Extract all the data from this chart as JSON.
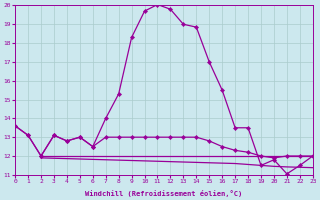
{
  "xlabel": "Windchill (Refroidissement éolien,°C)",
  "xlim": [
    0,
    23
  ],
  "ylim": [
    11,
    20
  ],
  "xticks": [
    0,
    1,
    2,
    3,
    4,
    5,
    6,
    7,
    8,
    9,
    10,
    11,
    12,
    13,
    14,
    15,
    16,
    17,
    18,
    19,
    20,
    21,
    22,
    23
  ],
  "yticks": [
    11,
    12,
    13,
    14,
    15,
    16,
    17,
    18,
    19,
    20
  ],
  "bg_color": "#cce8ee",
  "grid_color": "#aacccc",
  "line_color": "#990099",
  "line1_x": [
    0,
    1,
    2,
    3,
    4,
    5,
    6,
    7,
    8,
    9,
    10,
    11,
    12,
    13,
    14,
    15,
    16,
    17,
    18,
    19,
    20,
    21,
    22,
    23
  ],
  "line1_y": [
    13.6,
    13.1,
    12.0,
    13.1,
    12.8,
    13.0,
    12.5,
    14.0,
    15.3,
    18.3,
    19.7,
    20.05,
    19.8,
    19.0,
    18.85,
    17.0,
    15.5,
    13.5,
    13.5,
    11.5,
    11.8,
    11.05,
    11.5,
    12.0
  ],
  "line2_x": [
    0,
    1,
    2,
    3,
    4,
    5,
    6,
    7,
    8,
    9,
    10,
    11,
    12,
    13,
    14,
    15,
    16,
    17,
    18,
    19,
    20,
    21,
    22,
    23
  ],
  "line2_y": [
    13.6,
    13.1,
    12.0,
    13.1,
    12.8,
    13.0,
    12.5,
    13.0,
    13.0,
    13.0,
    13.0,
    13.0,
    13.0,
    13.0,
    13.0,
    12.8,
    12.5,
    12.3,
    12.2,
    12.0,
    11.9,
    12.0,
    12.0,
    12.0
  ],
  "line3_x": [
    2,
    3,
    4,
    5,
    6,
    7,
    8,
    9,
    10,
    11,
    12,
    13,
    14,
    15,
    16,
    17,
    18,
    19,
    20,
    21,
    22,
    23
  ],
  "line3_y": [
    12.0,
    12.0,
    12.0,
    12.0,
    12.0,
    12.0,
    12.0,
    12.0,
    12.0,
    12.0,
    12.0,
    12.0,
    12.0,
    12.0,
    12.0,
    12.0,
    12.0,
    12.0,
    12.0,
    12.0,
    12.0,
    12.0
  ],
  "line4_x": [
    2,
    3,
    4,
    5,
    6,
    7,
    8,
    9,
    10,
    11,
    12,
    13,
    14,
    15,
    16,
    17,
    18,
    19,
    20,
    21,
    22,
    23
  ],
  "line4_y": [
    11.9,
    11.88,
    11.86,
    11.84,
    11.82,
    11.8,
    11.78,
    11.76,
    11.74,
    11.72,
    11.7,
    11.68,
    11.66,
    11.64,
    11.62,
    11.6,
    11.55,
    11.5,
    11.45,
    11.42,
    11.4,
    11.38
  ]
}
